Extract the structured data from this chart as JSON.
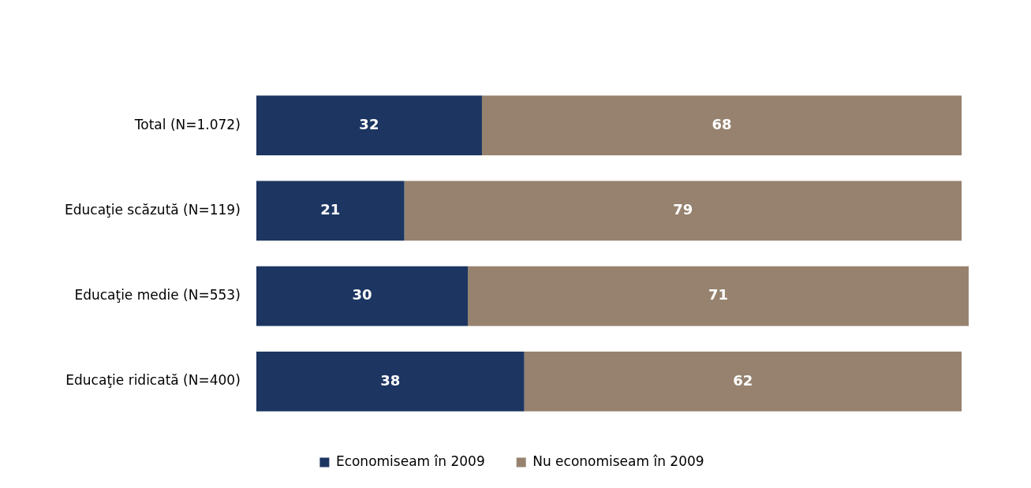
{
  "chart_data": {
    "type": "bar",
    "orientation": "horizontal",
    "stacked": true,
    "data_labels": true,
    "legend": "bottom",
    "categories": [
      "Total (N=1.072)",
      "Educaţie scăzută (N=119)",
      "Educaţie medie (N=553)",
      "Educaţie ridicată (N=400)"
    ],
    "series": [
      {
        "name": "Economiseam în 2009",
        "color": "#1d3661",
        "values": [
          32,
          21,
          30,
          38
        ]
      },
      {
        "name": "Nu economiseam în 2009",
        "color": "#96826e",
        "values": [
          68,
          79,
          71,
          62
        ]
      }
    ]
  }
}
